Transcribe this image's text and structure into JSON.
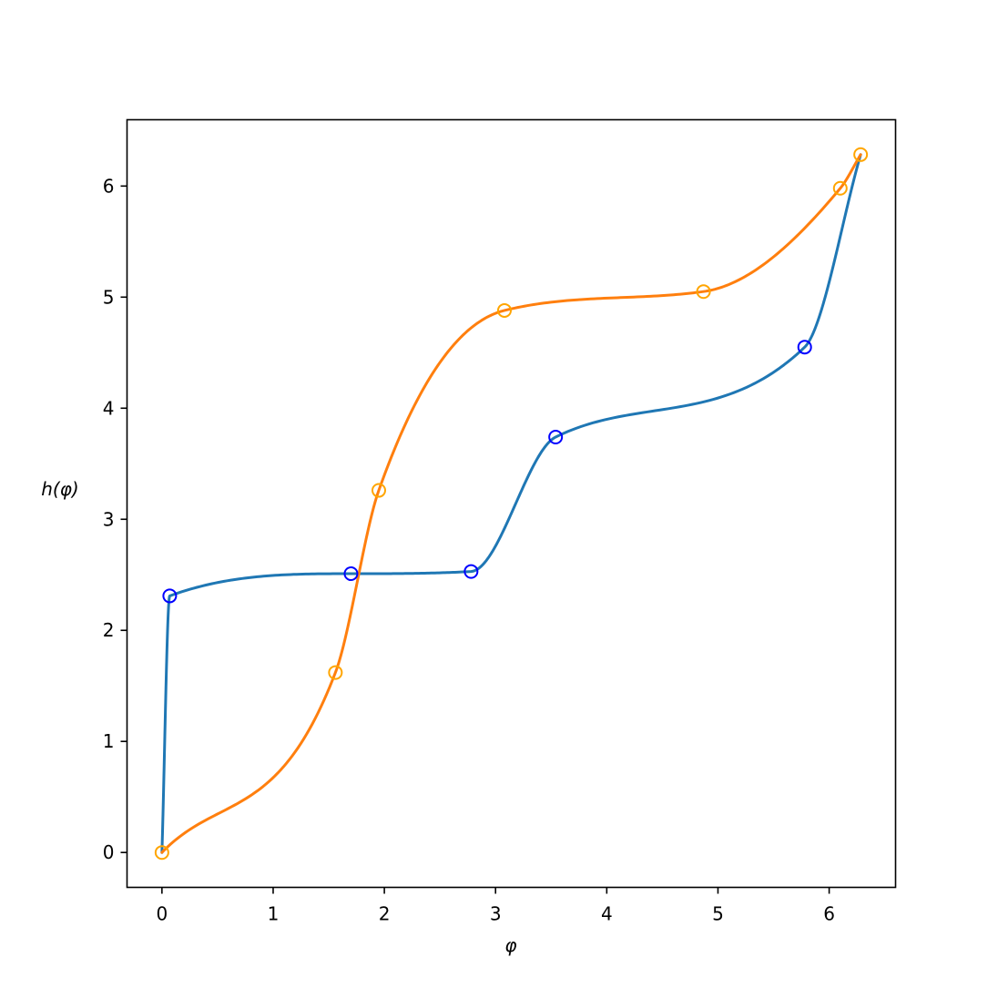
{
  "chart_data": {
    "type": "line",
    "title": "",
    "xlabel": "φ",
    "ylabel": "h(φ)",
    "xlim": [
      -0.314,
      6.597
    ],
    "ylim": [
      -0.314,
      6.597
    ],
    "xticks": [
      0,
      1,
      2,
      3,
      4,
      5,
      6
    ],
    "yticks": [
      0,
      1,
      2,
      3,
      4,
      5,
      6
    ],
    "grid": false,
    "legend": "none",
    "series": [
      {
        "color": "#1f77b4",
        "marker_color": "#0000ff",
        "points": [
          {
            "x": 0.0,
            "y": 0.0
          },
          {
            "x": 0.07,
            "y": 2.31
          },
          {
            "x": 1.7,
            "y": 2.51
          },
          {
            "x": 2.78,
            "y": 2.53
          },
          {
            "x": 3.54,
            "y": 3.74
          },
          {
            "x": 5.78,
            "y": 4.55
          },
          {
            "x": 6.283,
            "y": 6.283
          }
        ],
        "markers": [
          {
            "x": 0.07,
            "y": 2.31
          },
          {
            "x": 1.7,
            "y": 2.51
          },
          {
            "x": 2.78,
            "y": 2.53
          },
          {
            "x": 3.54,
            "y": 3.74
          },
          {
            "x": 5.78,
            "y": 4.55
          }
        ]
      },
      {
        "color": "#ff7f0e",
        "marker_color": "#ffa500",
        "points": [
          {
            "x": 0.0,
            "y": 0.0
          },
          {
            "x": 1.56,
            "y": 1.62
          },
          {
            "x": 1.95,
            "y": 3.26
          },
          {
            "x": 3.08,
            "y": 4.88
          },
          {
            "x": 4.87,
            "y": 5.05
          },
          {
            "x": 6.1,
            "y": 5.98
          },
          {
            "x": 6.283,
            "y": 6.283
          }
        ],
        "markers": [
          {
            "x": 0.0,
            "y": 0.0
          },
          {
            "x": 1.56,
            "y": 1.62
          },
          {
            "x": 1.95,
            "y": 3.26
          },
          {
            "x": 3.08,
            "y": 4.88
          },
          {
            "x": 4.87,
            "y": 5.05
          },
          {
            "x": 6.1,
            "y": 5.98
          },
          {
            "x": 6.283,
            "y": 6.283
          }
        ]
      }
    ]
  }
}
